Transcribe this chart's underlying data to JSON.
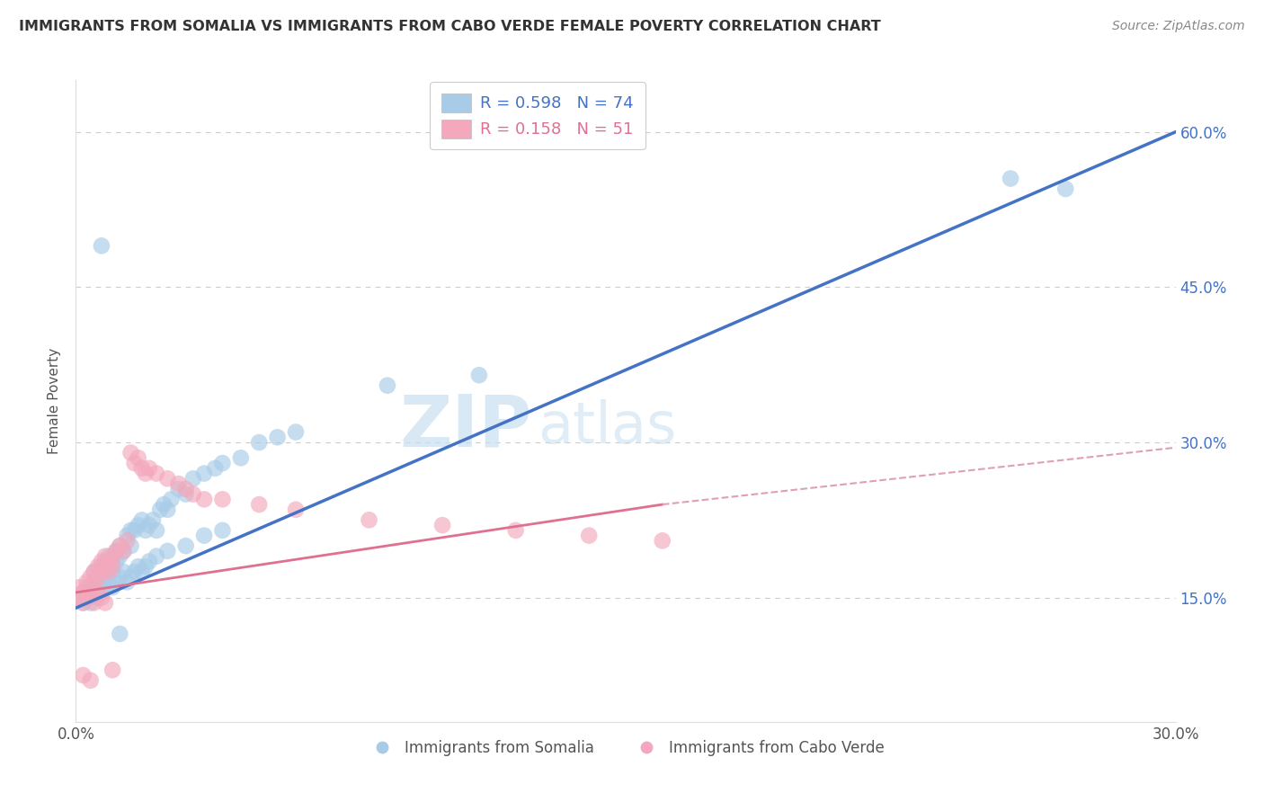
{
  "title": "IMMIGRANTS FROM SOMALIA VS IMMIGRANTS FROM CABO VERDE FEMALE POVERTY CORRELATION CHART",
  "source": "Source: ZipAtlas.com",
  "ylabel": "Female Poverty",
  "y_ticks_right": [
    0.15,
    0.3,
    0.45,
    0.6
  ],
  "y_tick_labels_right": [
    "15.0%",
    "30.0%",
    "45.0%",
    "60.0%"
  ],
  "xlim": [
    0.0,
    0.3
  ],
  "ylim": [
    0.03,
    0.65
  ],
  "somalia_R": 0.598,
  "somalia_N": 74,
  "caboverde_R": 0.158,
  "caboverde_N": 51,
  "somalia_color": "#a8cce8",
  "caboverde_color": "#f4a8bc",
  "somalia_line_color": "#4472c4",
  "caboverde_line_color": "#e07090",
  "caboverde_line_dashed_color": "#e0a0b0",
  "legend_somalia_label": "Immigrants from Somalia",
  "legend_caboverde_label": "Immigrants from Cabo Verde",
  "watermark_zip": "ZIP",
  "watermark_atlas": "atlas",
  "background_color": "#ffffff",
  "grid_color": "#cccccc",
  "somalia_line": [
    [
      0.0,
      0.14
    ],
    [
      0.3,
      0.6
    ]
  ],
  "caboverde_line_solid": [
    [
      0.0,
      0.155
    ],
    [
      0.16,
      0.24
    ]
  ],
  "caboverde_line_dashed": [
    [
      0.16,
      0.24
    ],
    [
      0.3,
      0.295
    ]
  ],
  "somalia_points": [
    [
      0.002,
      0.155
    ],
    [
      0.003,
      0.16
    ],
    [
      0.004,
      0.155
    ],
    [
      0.005,
      0.165
    ],
    [
      0.005,
      0.175
    ],
    [
      0.006,
      0.17
    ],
    [
      0.006,
      0.16
    ],
    [
      0.007,
      0.18
    ],
    [
      0.007,
      0.165
    ],
    [
      0.008,
      0.175
    ],
    [
      0.008,
      0.185
    ],
    [
      0.009,
      0.18
    ],
    [
      0.009,
      0.19
    ],
    [
      0.01,
      0.185
    ],
    [
      0.01,
      0.175
    ],
    [
      0.011,
      0.195
    ],
    [
      0.011,
      0.185
    ],
    [
      0.012,
      0.19
    ],
    [
      0.012,
      0.2
    ],
    [
      0.013,
      0.195
    ],
    [
      0.014,
      0.21
    ],
    [
      0.015,
      0.2
    ],
    [
      0.015,
      0.215
    ],
    [
      0.016,
      0.215
    ],
    [
      0.017,
      0.22
    ],
    [
      0.018,
      0.225
    ],
    [
      0.019,
      0.215
    ],
    [
      0.02,
      0.22
    ],
    [
      0.021,
      0.225
    ],
    [
      0.022,
      0.215
    ],
    [
      0.023,
      0.235
    ],
    [
      0.024,
      0.24
    ],
    [
      0.025,
      0.235
    ],
    [
      0.026,
      0.245
    ],
    [
      0.028,
      0.255
    ],
    [
      0.03,
      0.25
    ],
    [
      0.032,
      0.265
    ],
    [
      0.035,
      0.27
    ],
    [
      0.038,
      0.275
    ],
    [
      0.04,
      0.28
    ],
    [
      0.045,
      0.285
    ],
    [
      0.05,
      0.3
    ],
    [
      0.055,
      0.305
    ],
    [
      0.06,
      0.31
    ],
    [
      0.002,
      0.145
    ],
    [
      0.003,
      0.15
    ],
    [
      0.004,
      0.145
    ],
    [
      0.005,
      0.155
    ],
    [
      0.006,
      0.15
    ],
    [
      0.007,
      0.155
    ],
    [
      0.008,
      0.16
    ],
    [
      0.009,
      0.165
    ],
    [
      0.01,
      0.16
    ],
    [
      0.011,
      0.165
    ],
    [
      0.012,
      0.17
    ],
    [
      0.013,
      0.175
    ],
    [
      0.014,
      0.165
    ],
    [
      0.015,
      0.17
    ],
    [
      0.016,
      0.175
    ],
    [
      0.017,
      0.18
    ],
    [
      0.018,
      0.175
    ],
    [
      0.019,
      0.18
    ],
    [
      0.02,
      0.185
    ],
    [
      0.022,
      0.19
    ],
    [
      0.025,
      0.195
    ],
    [
      0.03,
      0.2
    ],
    [
      0.035,
      0.21
    ],
    [
      0.04,
      0.215
    ],
    [
      0.007,
      0.49
    ],
    [
      0.012,
      0.115
    ],
    [
      0.255,
      0.555
    ],
    [
      0.27,
      0.545
    ],
    [
      0.085,
      0.355
    ],
    [
      0.11,
      0.365
    ]
  ],
  "caboverde_points": [
    [
      0.001,
      0.16
    ],
    [
      0.002,
      0.155
    ],
    [
      0.003,
      0.165
    ],
    [
      0.004,
      0.17
    ],
    [
      0.005,
      0.165
    ],
    [
      0.005,
      0.175
    ],
    [
      0.006,
      0.18
    ],
    [
      0.006,
      0.17
    ],
    [
      0.007,
      0.175
    ],
    [
      0.007,
      0.185
    ],
    [
      0.008,
      0.18
    ],
    [
      0.008,
      0.19
    ],
    [
      0.009,
      0.185
    ],
    [
      0.009,
      0.175
    ],
    [
      0.01,
      0.19
    ],
    [
      0.01,
      0.18
    ],
    [
      0.011,
      0.195
    ],
    [
      0.012,
      0.2
    ],
    [
      0.013,
      0.195
    ],
    [
      0.014,
      0.205
    ],
    [
      0.015,
      0.29
    ],
    [
      0.016,
      0.28
    ],
    [
      0.017,
      0.285
    ],
    [
      0.018,
      0.275
    ],
    [
      0.019,
      0.27
    ],
    [
      0.02,
      0.275
    ],
    [
      0.022,
      0.27
    ],
    [
      0.025,
      0.265
    ],
    [
      0.028,
      0.26
    ],
    [
      0.03,
      0.255
    ],
    [
      0.032,
      0.25
    ],
    [
      0.035,
      0.245
    ],
    [
      0.04,
      0.245
    ],
    [
      0.05,
      0.24
    ],
    [
      0.06,
      0.235
    ],
    [
      0.08,
      0.225
    ],
    [
      0.1,
      0.22
    ],
    [
      0.12,
      0.215
    ],
    [
      0.14,
      0.21
    ],
    [
      0.16,
      0.205
    ],
    [
      0.001,
      0.15
    ],
    [
      0.002,
      0.145
    ],
    [
      0.003,
      0.155
    ],
    [
      0.004,
      0.15
    ],
    [
      0.005,
      0.145
    ],
    [
      0.006,
      0.155
    ],
    [
      0.007,
      0.15
    ],
    [
      0.008,
      0.145
    ],
    [
      0.002,
      0.075
    ],
    [
      0.004,
      0.07
    ],
    [
      0.01,
      0.08
    ]
  ]
}
